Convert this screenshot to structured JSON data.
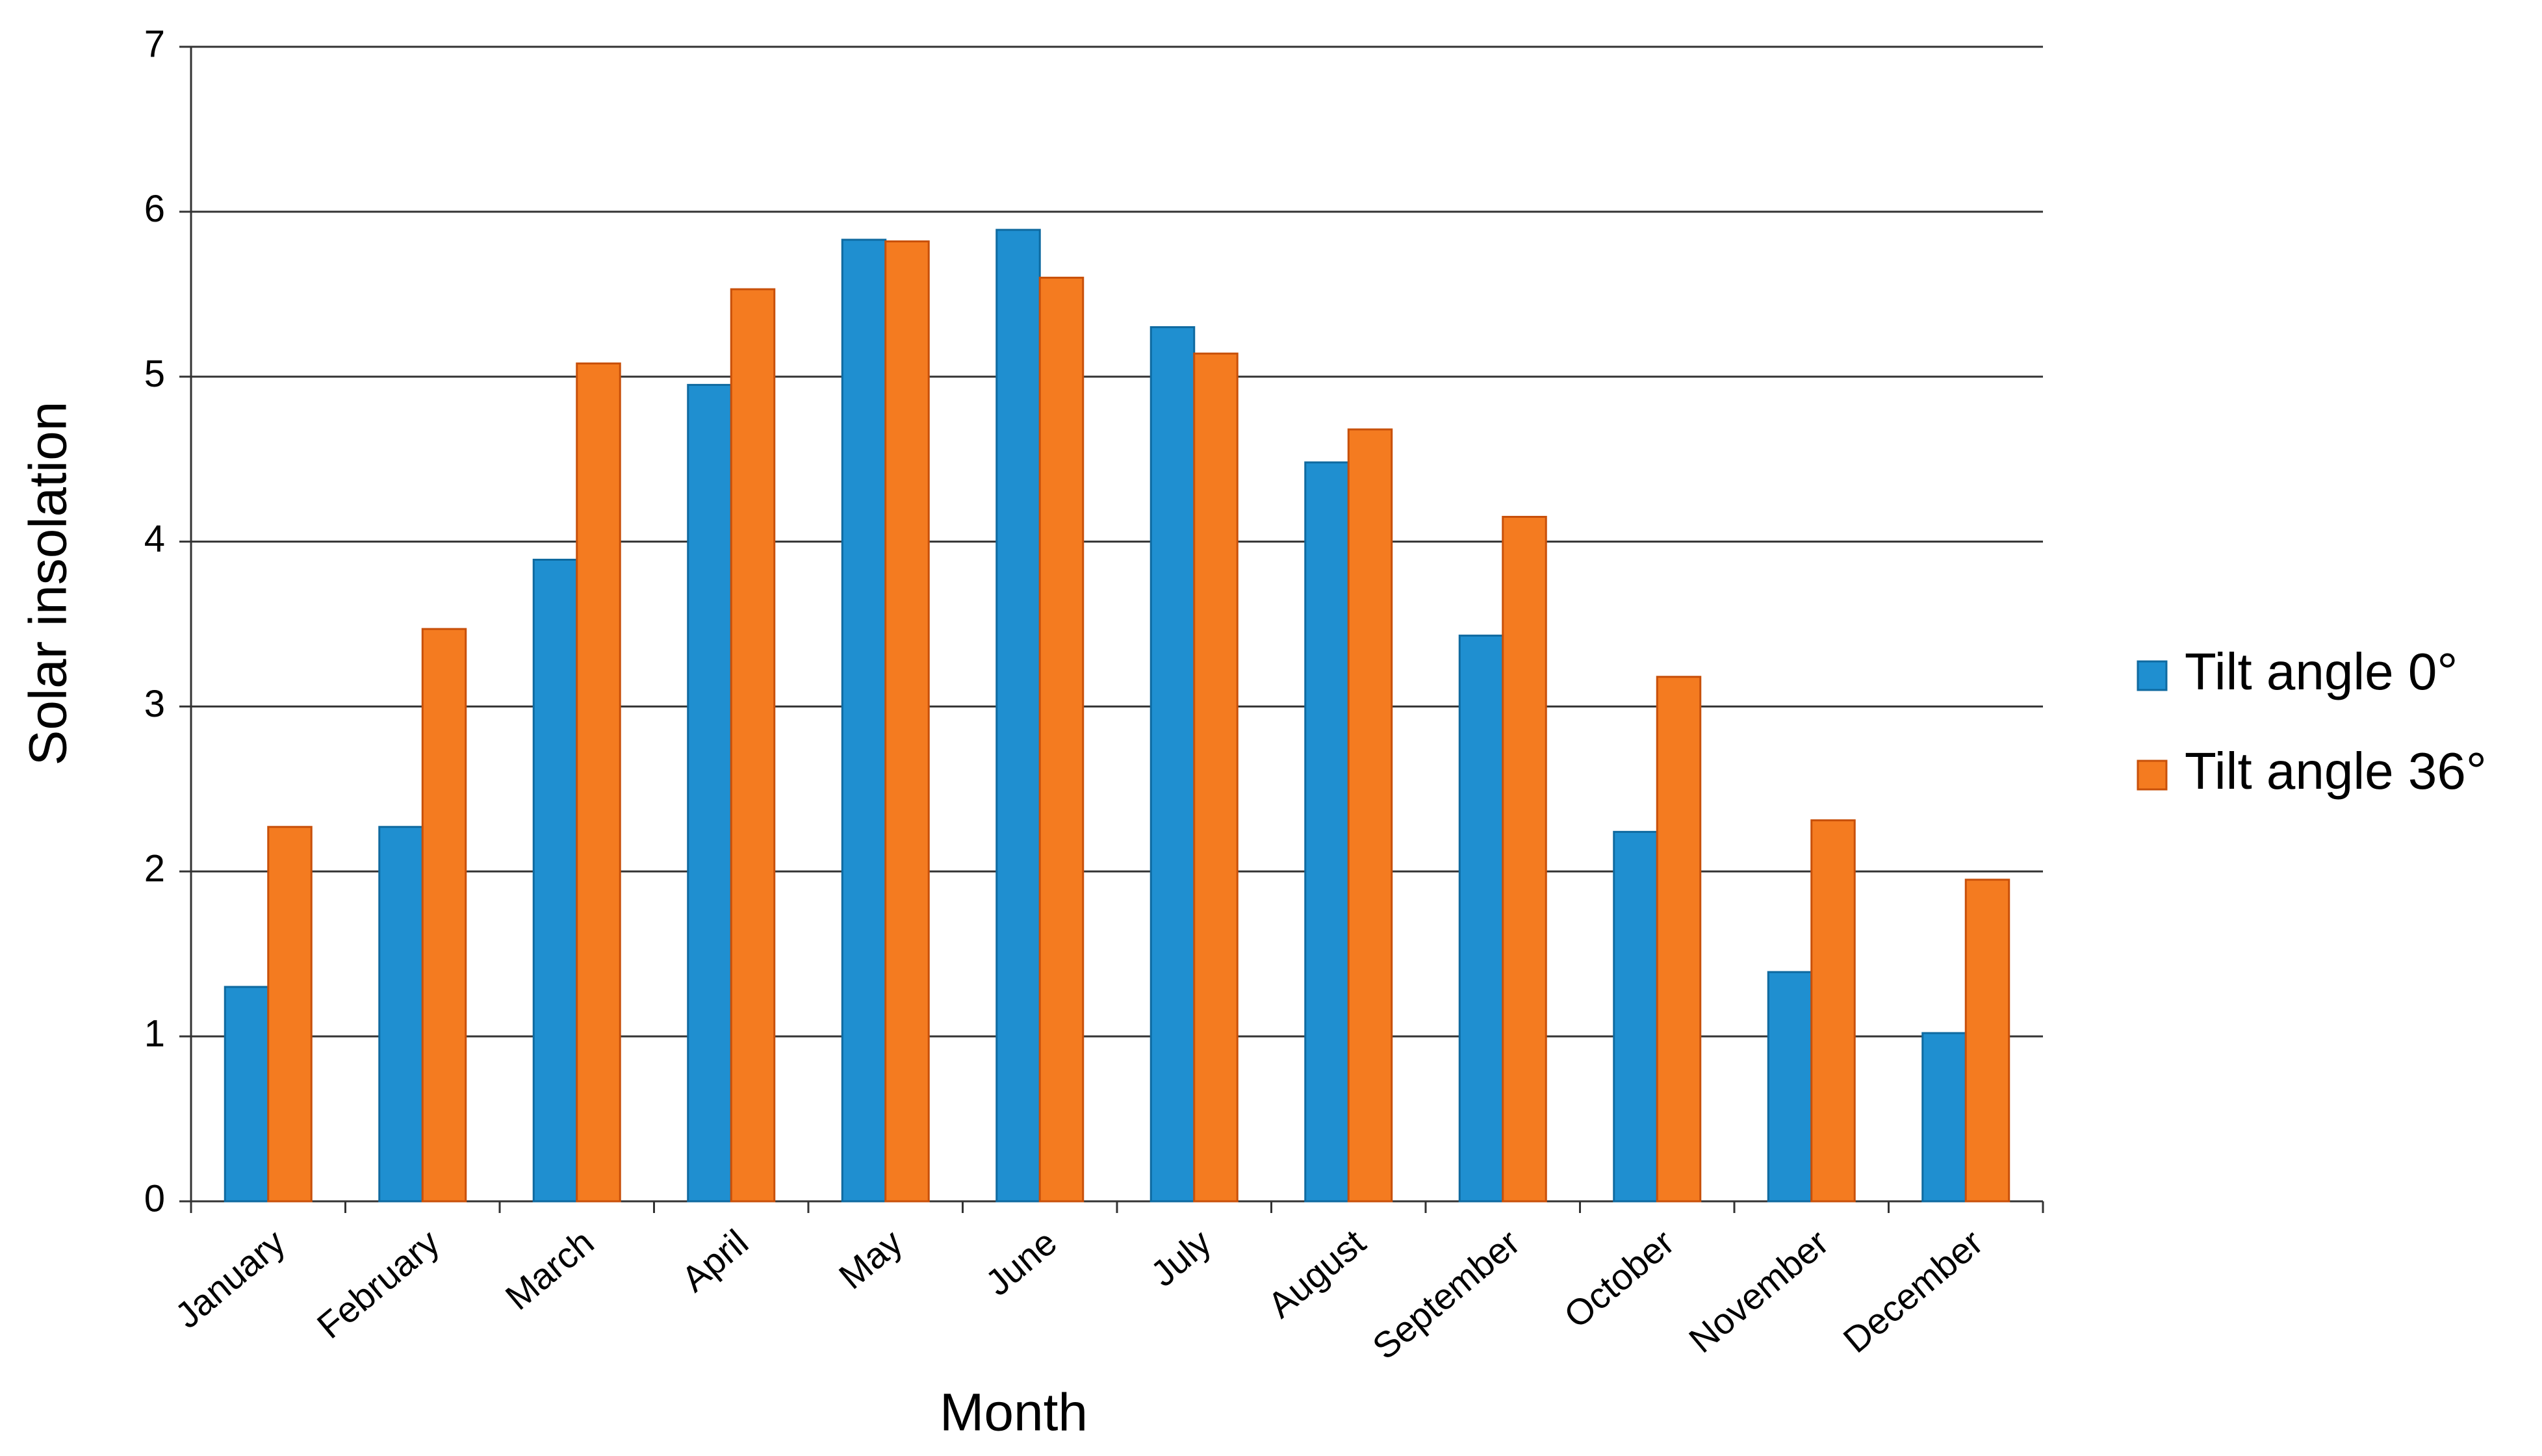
{
  "chart_data": {
    "type": "bar",
    "x_label": "Month",
    "y_label": "Solar insolation",
    "categories": [
      "January",
      "February",
      "March",
      "April",
      "May",
      "June",
      "July",
      "August",
      "September",
      "October",
      "November",
      "December"
    ],
    "series": [
      {
        "name": "Tilt angle 0°",
        "color": "#1f8fd0",
        "values": [
          1.3,
          2.27,
          3.89,
          4.95,
          5.83,
          5.89,
          5.3,
          4.48,
          3.43,
          2.24,
          1.39,
          1.02
        ]
      },
      {
        "name": "Tilt angle 36°",
        "color": "#f47b20",
        "values": [
          2.27,
          3.47,
          5.08,
          5.53,
          5.82,
          5.6,
          5.14,
          4.68,
          4.15,
          3.18,
          2.31,
          1.95
        ]
      }
    ],
    "ylim": [
      0,
      7
    ],
    "yticks": [
      0,
      1,
      2,
      3,
      4,
      5,
      6,
      7
    ],
    "grid": true,
    "legend": "right"
  }
}
